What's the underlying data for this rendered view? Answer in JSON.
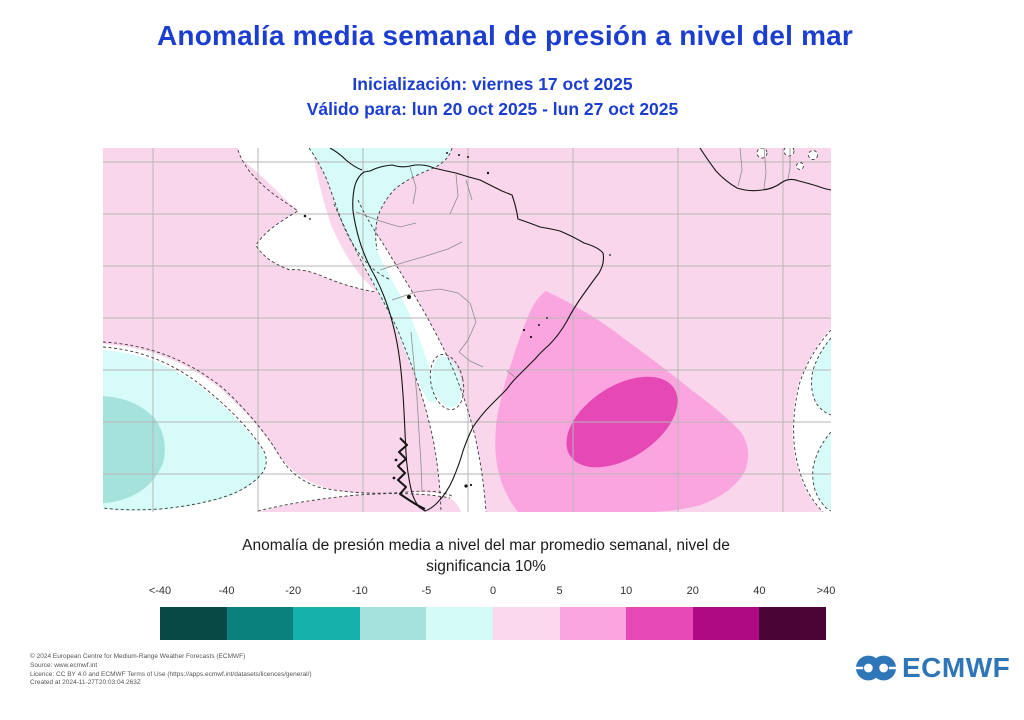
{
  "title": "Anomalía  media semanal de presión a nivel del mar",
  "init_line": "Inicialización: viernes 17 oct 2025",
  "valid_line": "Válido para: lun 20 oct 2025 - lun 27 oct 2025",
  "caption_line1": "Anomalía de presión media a nivel del mar promedio semanal, nivel de",
  "caption_line2": "significancia 10%",
  "colorbar": {
    "labels": [
      "<-40",
      "-40",
      "-20",
      "-10",
      "-5",
      "0",
      "5",
      "10",
      "20",
      "40",
      ">40"
    ],
    "colors": [
      "#074a45",
      "#0b817d",
      "#17b1ac",
      "#a5e2dc",
      "#d5fbf8",
      "#fcd8ef",
      "#fba5e0",
      "#e649b5",
      "#ae0a84",
      "#4b0534"
    ]
  },
  "footer_lines": [
    "© 2024 European Centre for Medium-Range Weather Forecasts (ECMWF)",
    "Source: www.ecmwf.int",
    "Licence: CC BY 4.0 and ECMWF Terms of Use (https://apps.ecmwf.int/datasets/licences/general/)",
    "Created at 2024-11-27T20:03:04.263Z"
  ],
  "logo_text": "ECMWF",
  "colors": {
    "title_blue": "#1c3ed0",
    "logo_blue": "#2e76b8"
  },
  "map": {
    "palette": {
      "bg": "#f9d6ec",
      "cy": "#d6fbf8",
      "tl": "#a5e2dc",
      "pm": "#fba5e0",
      "mg": "#e649b5",
      "grid": "#b6b6b6",
      "dash": "#3c3c3c",
      "coast": "#151515",
      "bord": "#8d8d8d"
    }
  }
}
